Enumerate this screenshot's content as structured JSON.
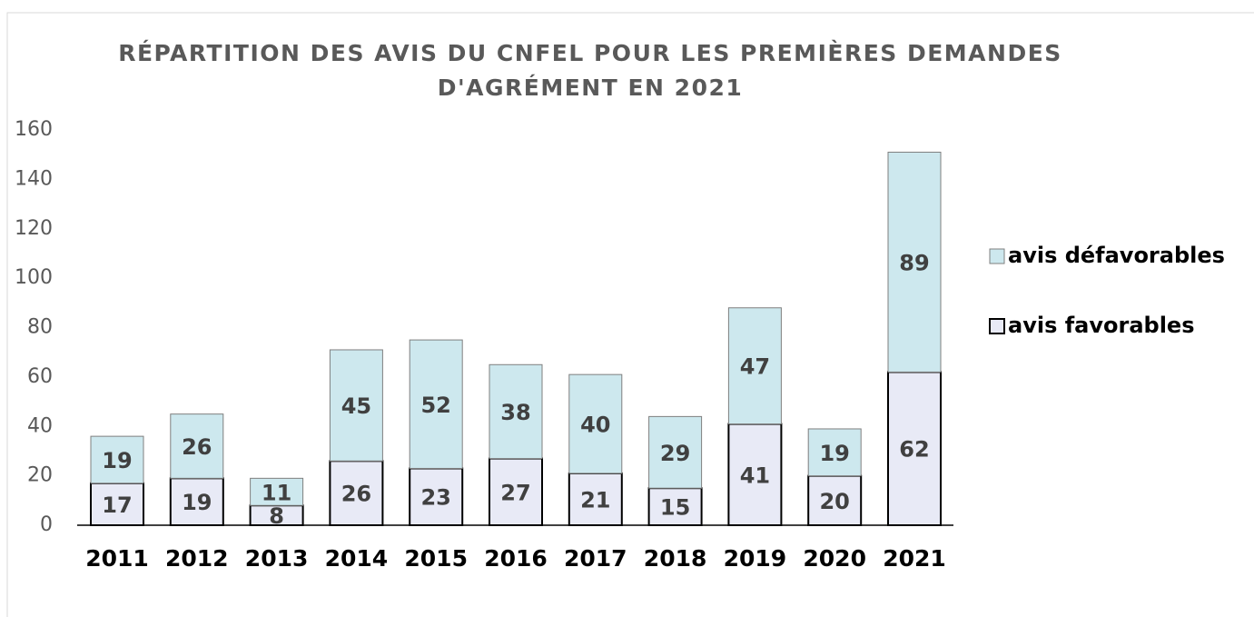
{
  "chart_data": {
    "type": "stacked_bar",
    "title": [
      "RÉPARTITION DES AVIS DU CNFEL POUR LES PREMIÈRES DEMANDES",
      "D'AGRÉMENT EN 2021"
    ],
    "categories": [
      "2011",
      "2012",
      "2013",
      "2014",
      "2015",
      "2016",
      "2017",
      "2018",
      "2019",
      "2020",
      "2021"
    ],
    "series": [
      {
        "name": "avis favorables",
        "color": "#e8eaf6",
        "values": [
          17,
          19,
          8,
          26,
          23,
          27,
          21,
          15,
          41,
          20,
          62
        ]
      },
      {
        "name": "avis défavorables",
        "color": "#cde8ee",
        "values": [
          19,
          26,
          11,
          45,
          52,
          38,
          40,
          29,
          47,
          19,
          89
        ]
      }
    ],
    "ylim": [
      0,
      160
    ],
    "yticks": [
      0,
      20,
      40,
      60,
      80,
      100,
      120,
      140,
      160
    ],
    "grid": false,
    "legend": "right"
  }
}
